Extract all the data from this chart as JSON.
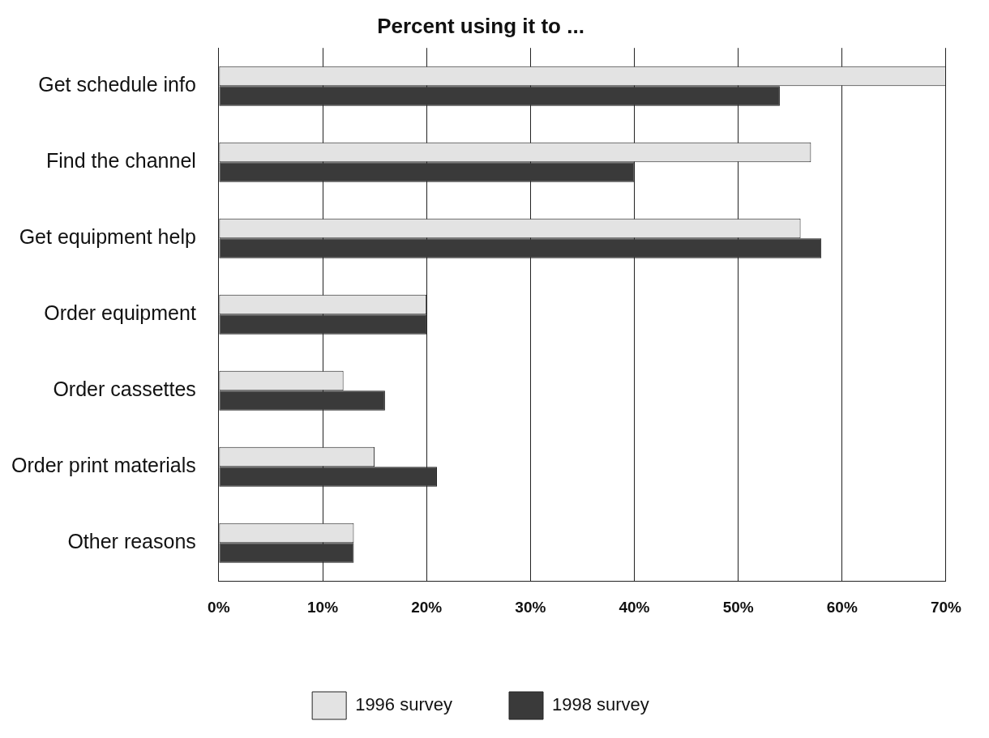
{
  "chart_data": {
    "type": "bar",
    "orientation": "horizontal",
    "title": "Percent using it to ...",
    "categories": [
      "Get schedule info",
      "Find the channel",
      "Get equipment help",
      "Order equipment",
      "Order cassettes",
      "Order print materials",
      "Other reasons"
    ],
    "series": [
      {
        "name": "1996 survey",
        "color": "#e3e3e3",
        "values": [
          70,
          57,
          56,
          20,
          12,
          15,
          13
        ]
      },
      {
        "name": "1998 survey",
        "color": "#3a3a3a",
        "values": [
          54,
          40,
          58,
          20,
          16,
          21,
          13
        ]
      }
    ],
    "xlim": [
      0,
      70
    ],
    "xticks": [
      {
        "value": 0,
        "label": "0%"
      },
      {
        "value": 10,
        "label": "10%"
      },
      {
        "value": 20,
        "label": "20%"
      },
      {
        "value": 30,
        "label": "30%"
      },
      {
        "value": 40,
        "label": "40%"
      },
      {
        "value": 50,
        "label": "50%"
      },
      {
        "value": 60,
        "label": "60%"
      },
      {
        "value": 70,
        "label": "70%"
      }
    ],
    "grid": "x",
    "legend": "bottom"
  }
}
